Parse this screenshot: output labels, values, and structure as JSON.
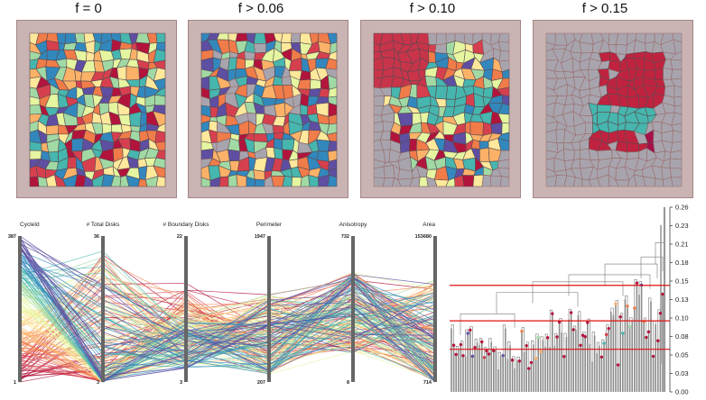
{
  "panels": [
    {
      "title": "f = 0"
    },
    {
      "title": "f > 0.06"
    },
    {
      "title": "f > 0.10"
    },
    {
      "title": "f > 0.15"
    }
  ],
  "colors": {
    "panel_border": "#a58686",
    "panel_bg": "#c9b3b3",
    "cell_bg": "#a8a4ad",
    "threshold_line": "#e01010",
    "palette": [
      "#b2143c",
      "#d6404e",
      "#f07c4a",
      "#fbb268",
      "#fee89b",
      "#e5f5a0",
      "#a1d9a4",
      "#46b6ae",
      "#3288bd",
      "#5e4fa2"
    ]
  },
  "parallel_coordinates": {
    "axes": [
      {
        "label": "CycleId",
        "max": "387",
        "min": "1"
      },
      {
        "label": "# Total Disks",
        "max": "36",
        "min": "3"
      },
      {
        "label": "# Boundary Disks",
        "max": "22",
        "min": "3"
      },
      {
        "label": "Perimeter",
        "max": "1947",
        "min": "207"
      },
      {
        "label": "Anisotropy",
        "max": "732",
        "min": "8"
      },
      {
        "label": "Area",
        "max": "153680",
        "min": "714"
      }
    ]
  },
  "chart_data": {
    "type": "dendrogram",
    "y_ticks": [
      "0.26",
      "0.23",
      "0.21",
      "0.18",
      "0.15",
      "0.13",
      "0.10",
      "0.08",
      "0.05",
      "0.03",
      "0.00"
    ],
    "ylim": [
      0,
      0.26
    ],
    "thresholds": [
      0.06,
      0.1,
      0.15
    ]
  }
}
